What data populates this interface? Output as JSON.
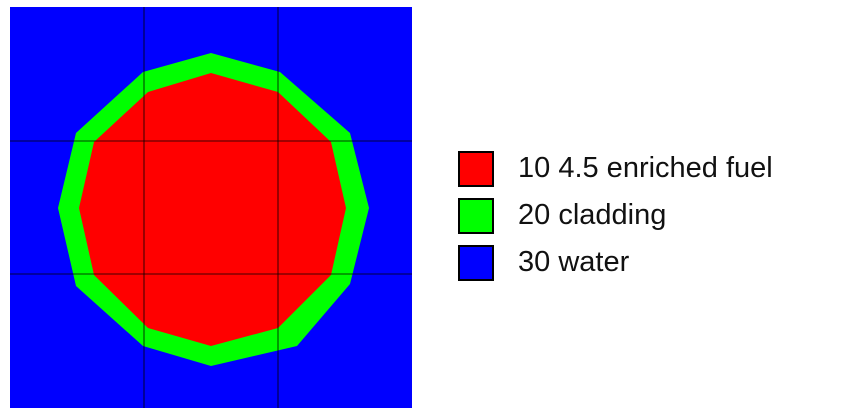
{
  "colors": {
    "background": "#0000ff",
    "grid_lines": "#000000"
  },
  "legend": {
    "items": [
      {
        "label": "10 4.5 enriched fuel",
        "color": "#ff0000"
      },
      {
        "label": "20 cladding",
        "color": "#00ff00"
      },
      {
        "label": "30 water",
        "color": "#0000ff"
      }
    ]
  }
}
